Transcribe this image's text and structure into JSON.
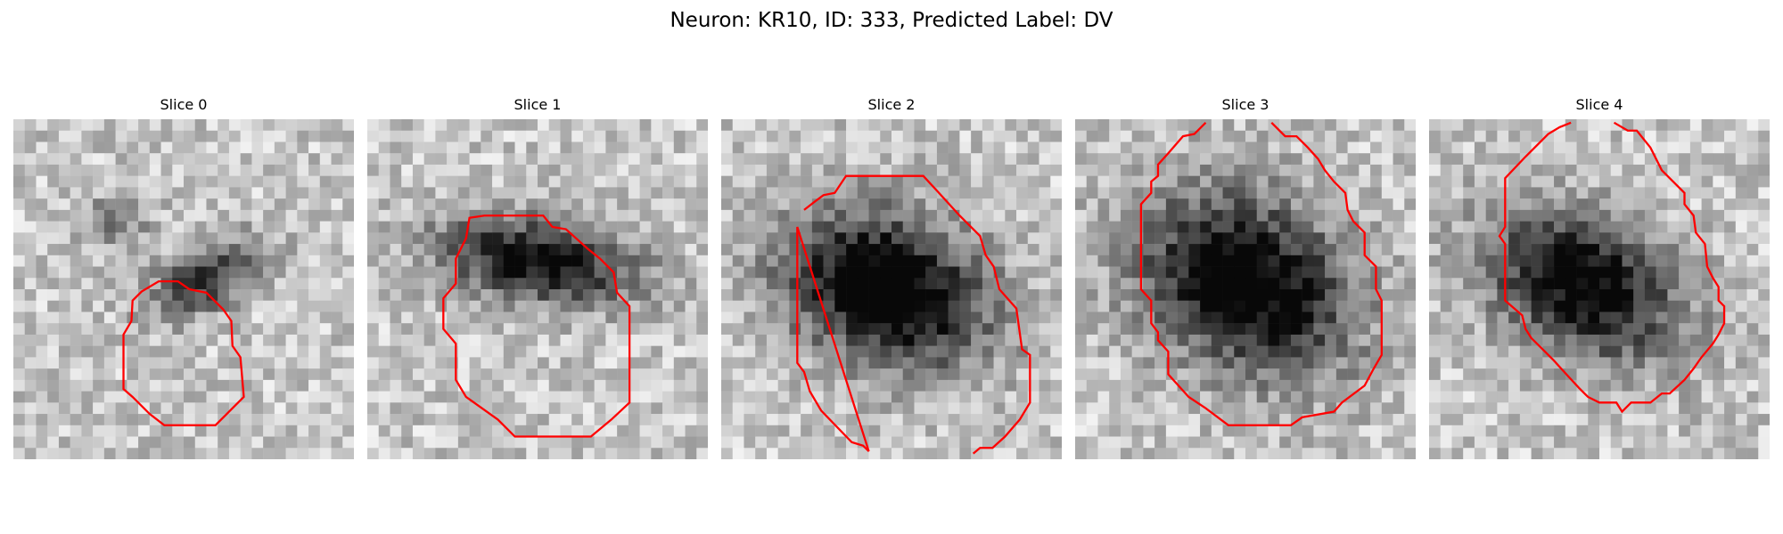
{
  "figure": {
    "title": "Neuron: KR10, ID: 333, Predicted Label: DV",
    "contour_color": "#ff0000",
    "colormap": "gray",
    "panels": [
      {
        "title": "Slice 0"
      },
      {
        "title": "Slice 1"
      },
      {
        "title": "Slice 2"
      },
      {
        "title": "Slice 3"
      },
      {
        "title": "Slice 4"
      }
    ]
  }
}
